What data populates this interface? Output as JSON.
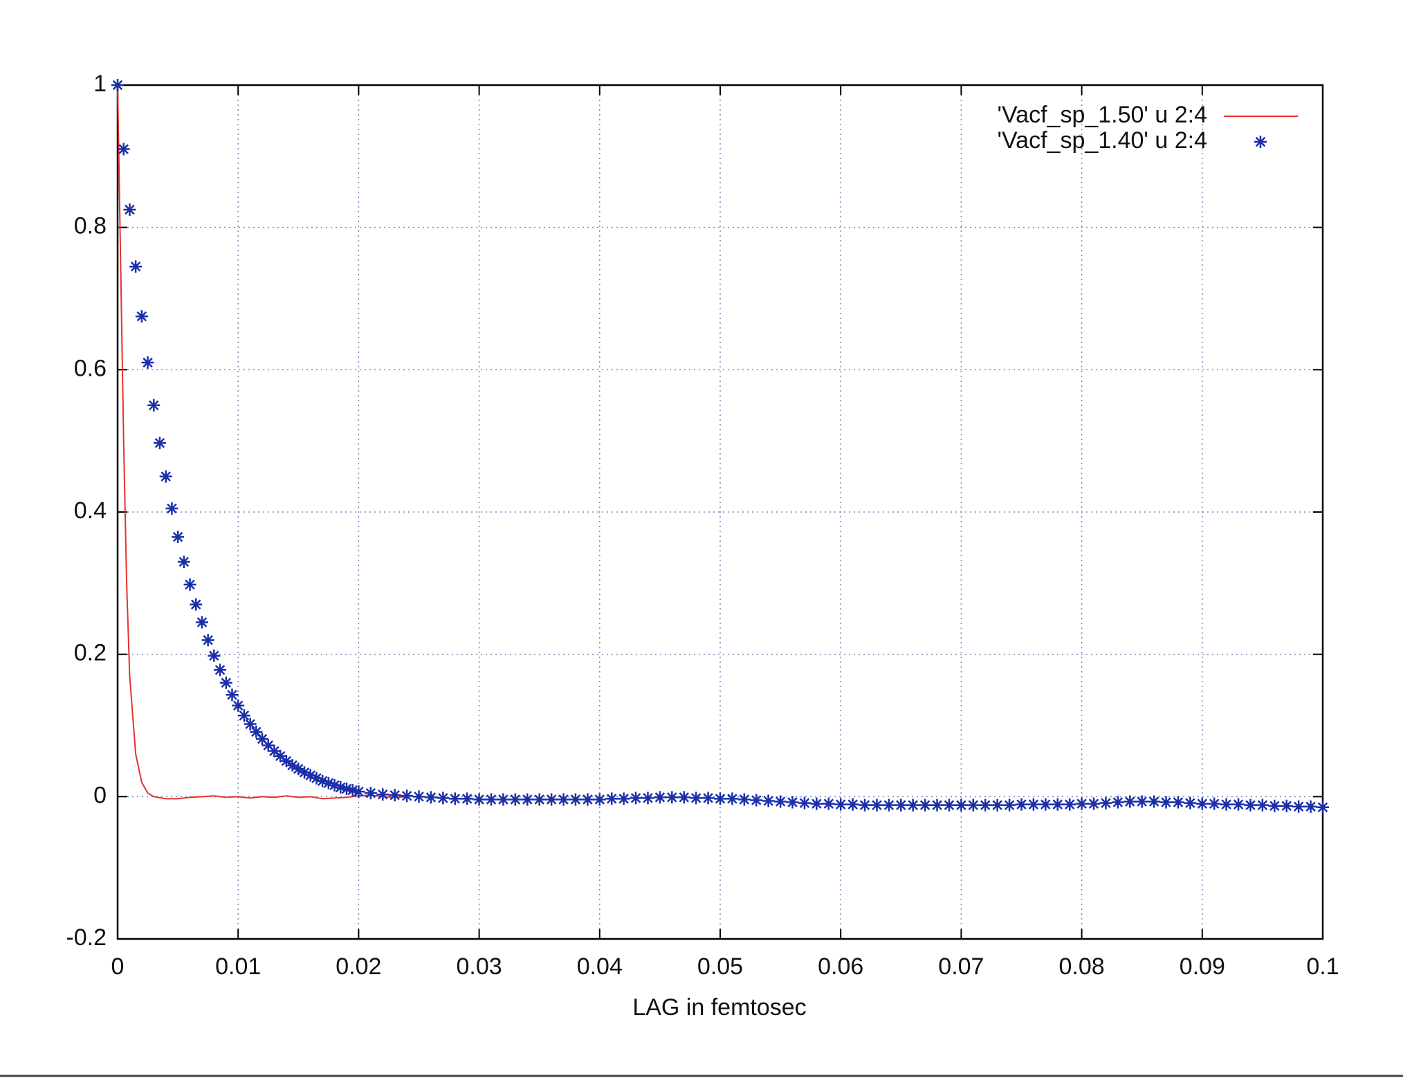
{
  "chart_data": {
    "type": "line",
    "xlabel": "LAG in femtosec",
    "xlim": [
      0,
      0.1
    ],
    "xticks": [
      0,
      0.01,
      0.02,
      0.03,
      0.04,
      0.05,
      0.06,
      0.07,
      0.08,
      0.09,
      0.1
    ],
    "ylim": [
      -0.2,
      1
    ],
    "yticks": [
      -0.2,
      0,
      0.2,
      0.4,
      0.6,
      0.8,
      1
    ],
    "grid": true,
    "legend": "top-right",
    "series": [
      {
        "name": "'Vacf_sp_1.50' u 2:4",
        "color": "#e8302a",
        "mark": "line",
        "x": [
          0,
          0.00025,
          0.0005,
          0.00075,
          0.001,
          0.0015,
          0.002,
          0.0025,
          0.003,
          0.004,
          0.005,
          0.006,
          0.007,
          0.008,
          0.009,
          0.01,
          0.011,
          0.012,
          0.013,
          0.014,
          0.015,
          0.016,
          0.017,
          0.018,
          0.019,
          0.02,
          0.021,
          0.022,
          0.023,
          0.024
        ],
        "values": [
          1,
          0.75,
          0.5,
          0.3,
          0.17,
          0.06,
          0.02,
          0.005,
          0,
          -0.003,
          -0.003,
          -0.001,
          0,
          0.001,
          -0.001,
          0,
          -0.002,
          0,
          -0.001,
          0.001,
          -0.001,
          0,
          -0.003,
          -0.002,
          -0.001,
          0.001,
          0.002,
          0,
          -0.001,
          0
        ]
      },
      {
        "name": "'Vacf_sp_1.40' u 2:4",
        "color": "#1a2fa8",
        "mark": "star",
        "x": [
          0,
          0.0005,
          0.001,
          0.0015,
          0.002,
          0.0025,
          0.003,
          0.0035,
          0.004,
          0.0045,
          0.005,
          0.0055,
          0.006,
          0.0065,
          0.007,
          0.0075,
          0.008,
          0.0085,
          0.009,
          0.0095,
          0.01,
          0.0105,
          0.011,
          0.0115,
          0.012,
          0.0125,
          0.013,
          0.0135,
          0.014,
          0.0145,
          0.015,
          0.0155,
          0.016,
          0.0165,
          0.017,
          0.0175,
          0.018,
          0.0185,
          0.019,
          0.0195,
          0.02,
          0.021,
          0.022,
          0.023,
          0.024,
          0.025,
          0.026,
          0.027,
          0.028,
          0.029,
          0.03,
          0.031,
          0.032,
          0.033,
          0.034,
          0.035,
          0.036,
          0.037,
          0.038,
          0.039,
          0.04,
          0.041,
          0.042,
          0.043,
          0.044,
          0.045,
          0.046,
          0.047,
          0.048,
          0.049,
          0.05,
          0.051,
          0.052,
          0.053,
          0.054,
          0.055,
          0.056,
          0.057,
          0.058,
          0.059,
          0.06,
          0.061,
          0.062,
          0.063,
          0.064,
          0.065,
          0.066,
          0.067,
          0.068,
          0.069,
          0.07,
          0.071,
          0.072,
          0.073,
          0.074,
          0.075,
          0.076,
          0.077,
          0.078,
          0.079,
          0.08,
          0.081,
          0.082,
          0.083,
          0.084,
          0.085,
          0.086,
          0.087,
          0.088,
          0.089,
          0.09,
          0.091,
          0.092,
          0.093,
          0.094,
          0.095,
          0.096,
          0.097,
          0.098,
          0.099,
          0.1
        ],
        "values": [
          1,
          0.91,
          0.825,
          0.745,
          0.675,
          0.61,
          0.55,
          0.497,
          0.45,
          0.405,
          0.365,
          0.33,
          0.298,
          0.27,
          0.245,
          0.22,
          0.198,
          0.178,
          0.16,
          0.143,
          0.128,
          0.114,
          0.102,
          0.091,
          0.081,
          0.072,
          0.064,
          0.057,
          0.05,
          0.044,
          0.039,
          0.034,
          0.03,
          0.026,
          0.022,
          0.019,
          0.016,
          0.013,
          0.011,
          0.009,
          0.007,
          0.005,
          0.003,
          0.002,
          0.001,
          0,
          -0.001,
          -0.002,
          -0.003,
          -0.003,
          -0.004,
          -0.004,
          -0.004,
          -0.004,
          -0.004,
          -0.004,
          -0.004,
          -0.004,
          -0.004,
          -0.004,
          -0.004,
          -0.003,
          -0.003,
          -0.002,
          -0.002,
          -0.001,
          -0.001,
          -0.001,
          -0.002,
          -0.002,
          -0.003,
          -0.003,
          -0.004,
          -0.005,
          -0.006,
          -0.007,
          -0.008,
          -0.009,
          -0.01,
          -0.01,
          -0.011,
          -0.011,
          -0.012,
          -0.012,
          -0.012,
          -0.012,
          -0.012,
          -0.012,
          -0.012,
          -0.012,
          -0.012,
          -0.012,
          -0.012,
          -0.012,
          -0.012,
          -0.011,
          -0.011,
          -0.011,
          -0.011,
          -0.011,
          -0.01,
          -0.01,
          -0.009,
          -0.008,
          -0.007,
          -0.007,
          -0.007,
          -0.008,
          -0.008,
          -0.009,
          -0.01,
          -0.01,
          -0.011,
          -0.011,
          -0.012,
          -0.012,
          -0.013,
          -0.013,
          -0.014,
          -0.014,
          -0.015
        ]
      }
    ]
  }
}
